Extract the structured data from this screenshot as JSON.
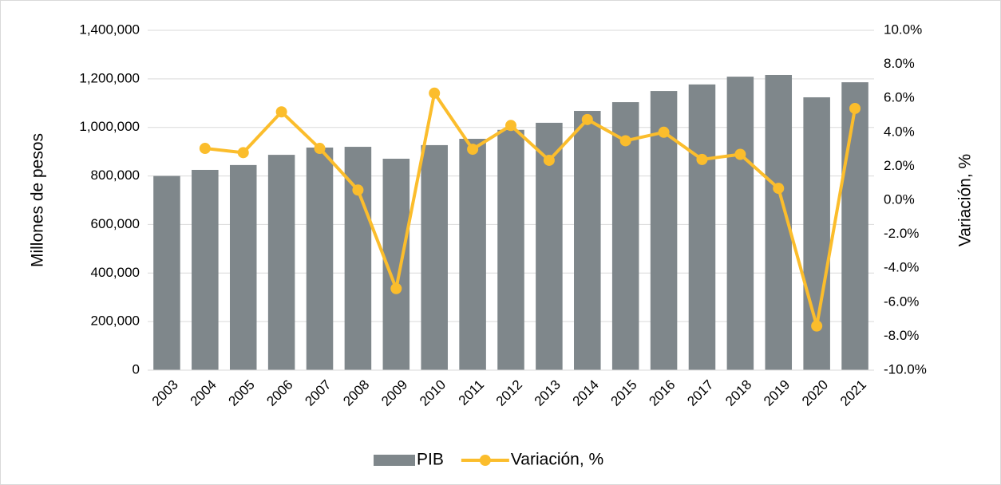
{
  "chart_data": {
    "type": "bar-line",
    "y_label": "Millones de pesos",
    "y2_label": "Variación, %",
    "categories": [
      "2003",
      "2004",
      "2005",
      "2006",
      "2007",
      "2008",
      "2009",
      "2010",
      "2011",
      "2012",
      "2013",
      "2014",
      "2015",
      "2016",
      "2017",
      "2018",
      "2019",
      "2020",
      "2021"
    ],
    "series": [
      {
        "name": "PIB",
        "type": "bar",
        "color": "#7f878b",
        "values": [
          800000,
          825000,
          845000,
          887000,
          917000,
          920000,
          871000,
          927000,
          953000,
          990000,
          1019000,
          1068000,
          1104000,
          1150000,
          1177000,
          1209000,
          1216000,
          1124000,
          1186000
        ]
      },
      {
        "name": "Variación, %",
        "type": "line",
        "axis": "y2",
        "color": "#fbbd2c",
        "values": [
          null,
          3.05,
          2.8,
          5.2,
          3.05,
          0.6,
          -5.2,
          6.3,
          3.0,
          4.4,
          2.35,
          4.75,
          3.5,
          4.0,
          2.4,
          2.7,
          0.7,
          -7.4,
          5.4
        ]
      }
    ],
    "ylim": [
      0,
      1400000
    ],
    "yticks": [
      0,
      {
        "value": 200000,
        "label": "200,000"
      },
      {
        "value": 400000,
        "label": "400,000"
      },
      {
        "value": 600000,
        "label": "600,000"
      },
      {
        "value": 800000,
        "label": "800,000"
      },
      {
        "value": 1000000,
        "label": "1,000,000"
      },
      {
        "value": 1200000,
        "label": "1,200,000"
      },
      {
        "value": 1400000,
        "label": "1,400,000"
      }
    ],
    "y2lim": [
      -10,
      10
    ],
    "y2ticks": [
      {
        "value": -10,
        "label": "-10.0%"
      },
      {
        "value": -8,
        "label": "-8.0%"
      },
      {
        "value": -6,
        "label": "-6.0%"
      },
      {
        "value": -4,
        "label": "-4.0%"
      },
      {
        "value": -2,
        "label": "-2.0%"
      },
      {
        "value": 0,
        "label": "0.0%"
      },
      {
        "value": 2,
        "label": "2.0%"
      },
      {
        "value": 4,
        "label": "4.0%"
      },
      {
        "value": 6,
        "label": "6.0%"
      },
      {
        "value": 8,
        "label": "8.0%"
      },
      {
        "value": 10,
        "label": "10.0%"
      }
    ],
    "grid": true,
    "legend": "bottom"
  }
}
